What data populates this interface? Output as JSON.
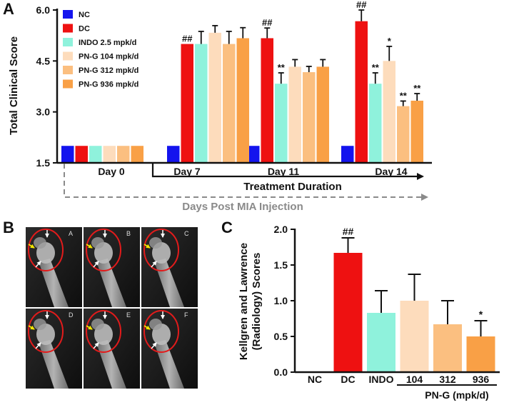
{
  "panel_a": {
    "letter": "A"
  },
  "panel_b": {
    "letter": "B",
    "subpanels": [
      "A",
      "B",
      "C",
      "D",
      "E",
      "F"
    ]
  },
  "panel_c": {
    "letter": "C"
  },
  "colors": {
    "NC": "#1414ee",
    "DC": "#ee1111",
    "INDO": "#8ff2dc",
    "PNG104": "#fddcbc",
    "PNG312": "#fbbf80",
    "PNG936": "#f9a046",
    "arrow_white": "#ffffff",
    "arrow_yellow": "#f4e600",
    "circle": "#e31b1b",
    "dashed": "#8a8a8a"
  },
  "chart_data": [
    {
      "type": "bar",
      "title": "",
      "ylabel": "Total Clinical Score",
      "ylim": [
        1.5,
        6.0
      ],
      "yticks": [
        "1.5",
        "3.0",
        "4.5",
        "6.0"
      ],
      "categories": [
        "Day 0",
        "Day 7",
        "Day 11",
        "Day 14"
      ],
      "series": [
        {
          "name": "NC",
          "values": [
            2.0,
            2.0,
            2.0,
            2.0
          ],
          "errors": [
            0,
            0,
            0,
            0
          ],
          "sig": [
            "",
            "",
            "",
            ""
          ]
        },
        {
          "name": "DC",
          "values": [
            2.0,
            5.0,
            5.17,
            5.67
          ],
          "errors": [
            0,
            0,
            0.3,
            0.33
          ],
          "sig": [
            "",
            "##",
            "##",
            "##"
          ]
        },
        {
          "name": "INDO 2.5 mpk/d",
          "values": [
            2.0,
            5.0,
            3.83,
            3.83
          ],
          "errors": [
            0,
            0.37,
            0.32,
            0.32
          ],
          "sig": [
            "",
            "",
            "**",
            "**"
          ]
        },
        {
          "name": "PN-G 104 mpk/d",
          "values": [
            2.0,
            5.33,
            4.33,
            4.5
          ],
          "errors": [
            0,
            0.21,
            0.21,
            0.43
          ],
          "sig": [
            "",
            "",
            "",
            "*"
          ]
        },
        {
          "name": "PN-G 312 mpk/d",
          "values": [
            2.0,
            5.0,
            4.17,
            3.17
          ],
          "errors": [
            0,
            0.37,
            0.17,
            0.15
          ],
          "sig": [
            "",
            "",
            "",
            "**"
          ]
        },
        {
          "name": "PN-G 936 mpk/d",
          "values": [
            2.0,
            5.17,
            4.33,
            3.33
          ],
          "errors": [
            0,
            0.31,
            0.21,
            0.21
          ],
          "sig": [
            "",
            "",
            "",
            "**"
          ]
        }
      ],
      "bracket_label": "Treatment Duration",
      "dashed_label": "Days Post MIA Injection",
      "legend_position": "top-left"
    },
    {
      "type": "bar",
      "title": "",
      "ylabel": "Kellgren and Lawrence (Radiology) Scores",
      "ylabel_lines": [
        "Kellgren and Lawrence",
        "(Radiology) Scores"
      ],
      "ylim": [
        0.0,
        2.0
      ],
      "yticks": [
        "0.0",
        "0.5",
        "1.0",
        "1.5",
        "2.0"
      ],
      "categories": [
        "NC",
        "DC",
        "INDO",
        "104",
        "312",
        "936"
      ],
      "values": [
        0.0,
        1.67,
        0.83,
        1.0,
        0.67,
        0.5
      ],
      "errors": [
        0,
        0.21,
        0.31,
        0.37,
        0.33,
        0.22
      ],
      "sig": [
        "",
        "##",
        "",
        "",
        "",
        "*"
      ],
      "group_label": "PN-G (mpk/d)"
    }
  ]
}
